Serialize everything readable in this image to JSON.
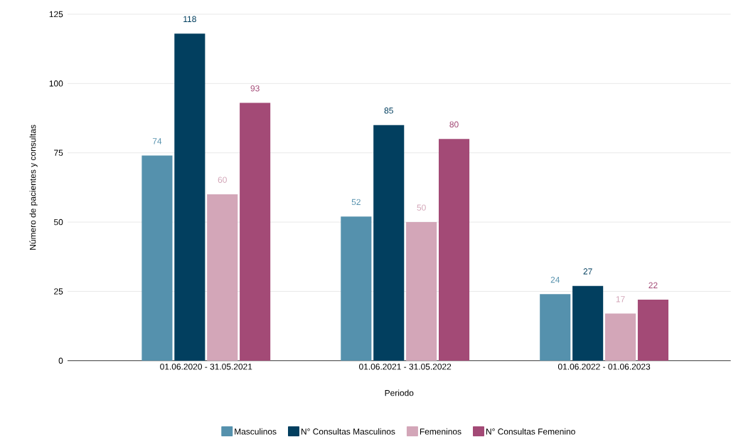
{
  "chart_data": {
    "type": "bar",
    "xlabel": "Periodo",
    "ylabel": "Número de pacientes y consultas",
    "categories": [
      "01.06.2020 - 31.05.2021",
      "01.06.2021 - 31.05.2022",
      "01.06.2022 - 01.06.2023"
    ],
    "series": [
      {
        "name": "Masculinos",
        "color": "#5591ad",
        "values": [
          74,
          52,
          24
        ]
      },
      {
        "name": "N° Consultas Masculinos",
        "color": "#023f5f",
        "values": [
          118,
          85,
          27
        ]
      },
      {
        "name": "Femeninos",
        "color": "#d3a6b8",
        "values": [
          60,
          50,
          17
        ]
      },
      {
        "name": "N° Consultas Femenino",
        "color": "#a34a76",
        "values": [
          93,
          80,
          22
        ]
      }
    ],
    "ylim": [
      0,
      125
    ],
    "yticks": [
      0,
      25,
      50,
      75,
      100,
      125
    ],
    "grid": "y",
    "legend": "bottom",
    "data_labels": true
  }
}
